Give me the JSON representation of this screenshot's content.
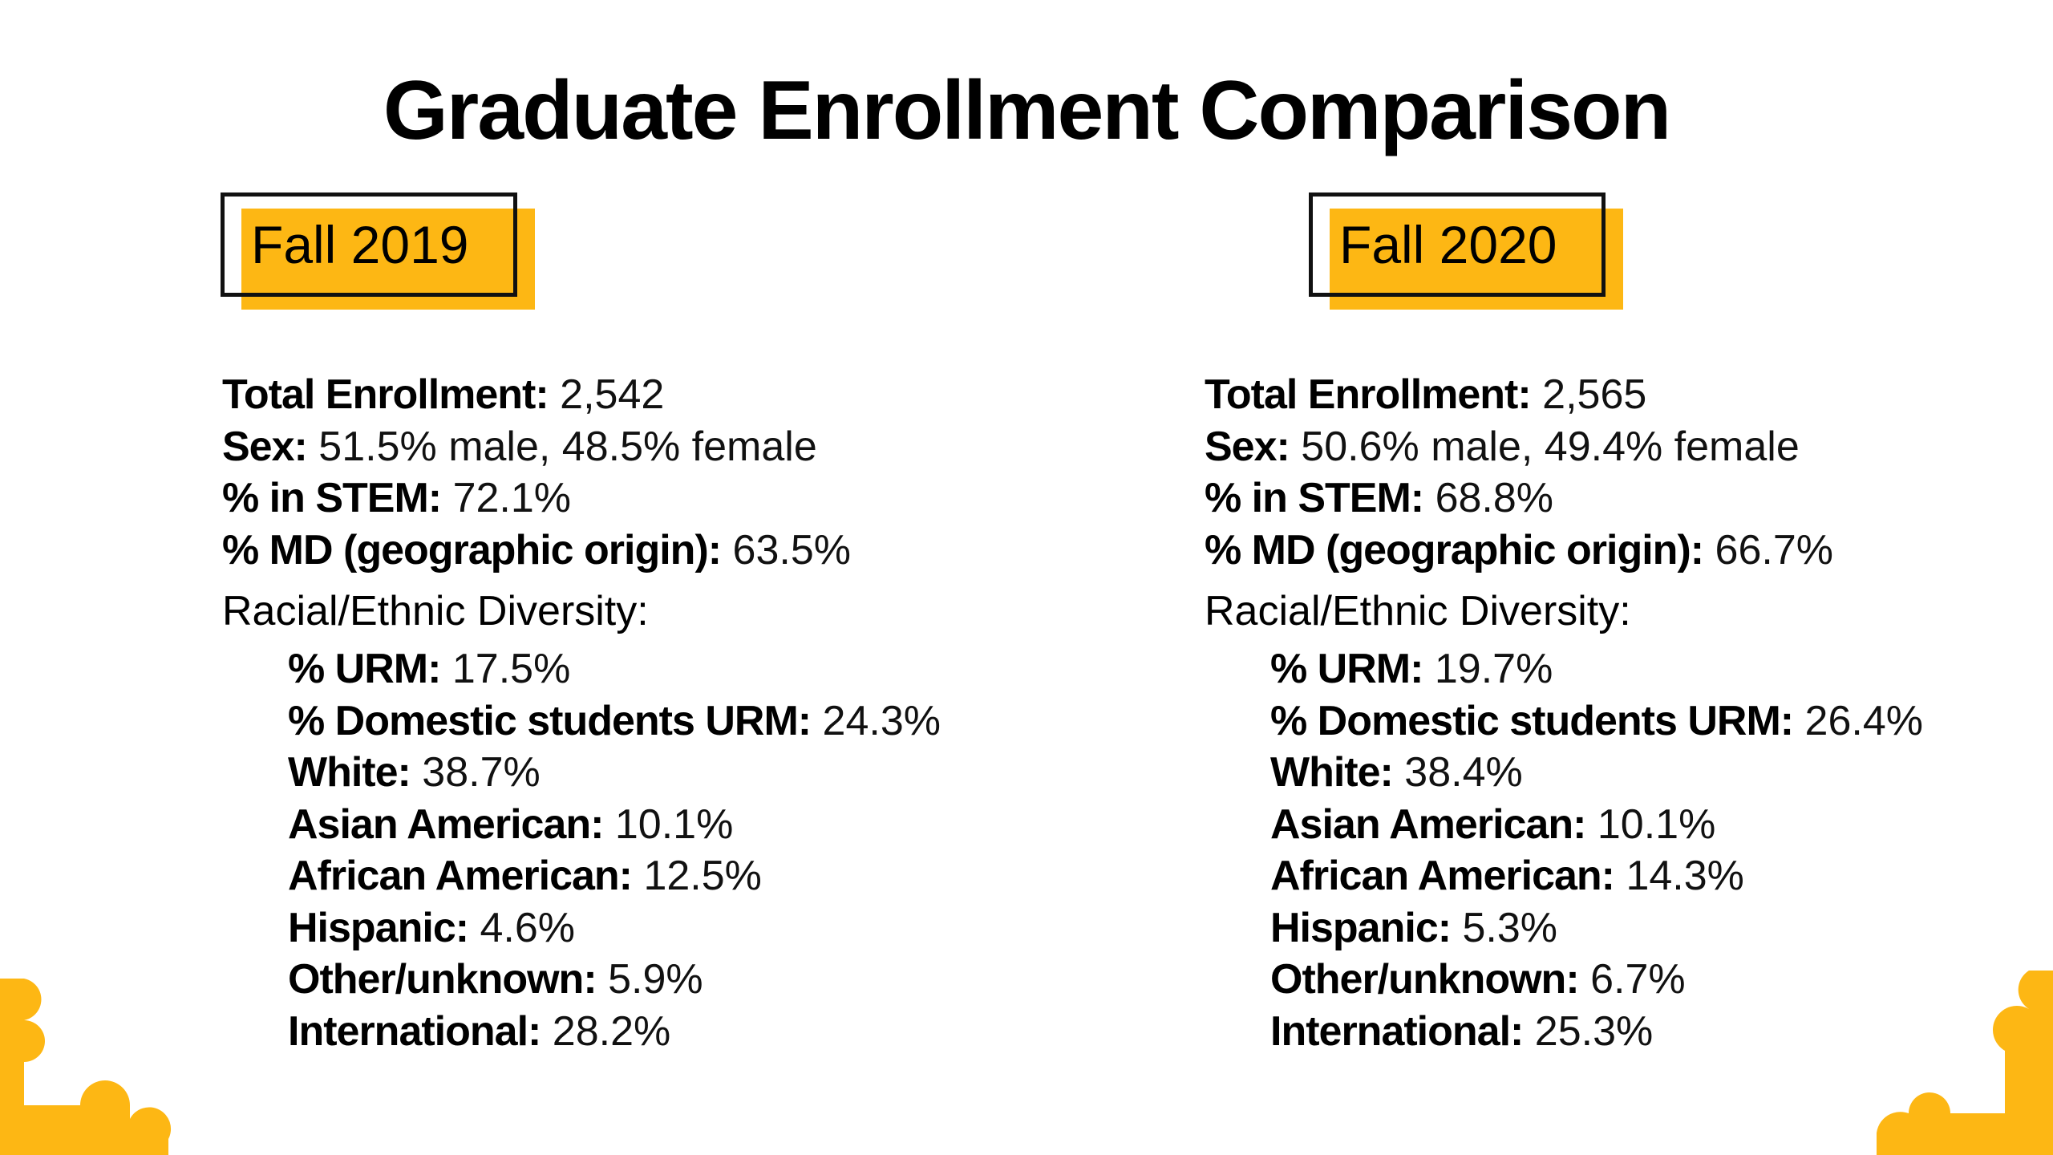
{
  "title": "Graduate Enrollment Comparison",
  "columns": [
    {
      "year": "Fall 2019",
      "total_label": "Total Enrollment:",
      "total_value": "2,542",
      "sex_label": "Sex:",
      "sex_value": "51.5% male, 48.5% female",
      "stem_label": "% in STEM:",
      "stem_value": "72.1%",
      "md_label": "% MD (geographic origin):",
      "md_value": "63.5%",
      "diversity_heading": "Racial/Ethnic Diversity:",
      "diversity": [
        {
          "label": "% URM:",
          "value": "17.5%"
        },
        {
          "label": "% Domestic students URM:",
          "value": "24.3%"
        },
        {
          "label": "White:",
          "value": "38.7%"
        },
        {
          "label": "Asian American:",
          "value": "10.1%"
        },
        {
          "label": "African American:",
          "value": "12.5%"
        },
        {
          "label": "Hispanic:",
          "value": "4.6%"
        },
        {
          "label": "Other/unknown:",
          "value": "5.9%"
        },
        {
          "label": "International:",
          "value": "28.2%"
        }
      ]
    },
    {
      "year": "Fall 2020",
      "total_label": "Total Enrollment:",
      "total_value": "2,565",
      "sex_label": "Sex:",
      "sex_value": "50.6% male, 49.4% female",
      "stem_label": "% in STEM:",
      "stem_value": "68.8%",
      "md_label": "% MD (geographic origin):",
      "md_value": "66.7%",
      "diversity_heading": "Racial/Ethnic Diversity:",
      "diversity": [
        {
          "label": "% URM:",
          "value": "19.7%"
        },
        {
          "label": "% Domestic students URM:",
          "value": "26.4%"
        },
        {
          "label": "White:",
          "value": "38.4%"
        },
        {
          "label": "Asian American:",
          "value": "10.1%"
        },
        {
          "label": "African American:",
          "value": "14.3%"
        },
        {
          "label": "Hispanic:",
          "value": "5.3%"
        },
        {
          "label": "Other/unknown:",
          "value": "6.7%"
        },
        {
          "label": "International:",
          "value": "25.3%"
        }
      ]
    }
  ],
  "colors": {
    "accent": "#fdb714",
    "text": "#000000",
    "background": "#ffffff"
  }
}
